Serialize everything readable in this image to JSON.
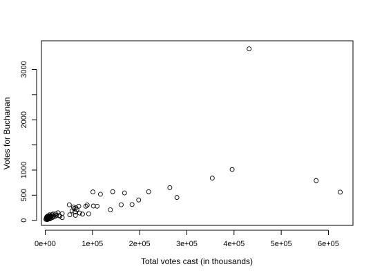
{
  "chart_data": {
    "type": "scatter",
    "title": "",
    "xlabel": "Total votes cast (in thousands)",
    "ylabel": "Votes for Buchanan",
    "xlim": [
      -8000,
      652000
    ],
    "ylim": [
      -100,
      3570
    ],
    "x_ticks": [
      0,
      100000,
      200000,
      300000,
      400000,
      500000,
      600000
    ],
    "x_tick_labels": [
      "0e+00",
      "1e+05",
      "2e+05",
      "3e+05",
      "4e+05",
      "5e+05",
      "6e+05"
    ],
    "y_ticks": [
      0,
      500,
      1000,
      1500,
      2000,
      2500,
      3000
    ],
    "y_tick_labels": [
      "0",
      "500",
      "1000",
      "",
      "2000",
      "",
      "3000"
    ],
    "grid": false,
    "legend": "none",
    "marker": "open-circle",
    "colors": {
      "points": "#000000",
      "axes": "#000000",
      "background": "#ffffff"
    },
    "series": [
      {
        "values": [
          {
            "x": 1500,
            "y": 20
          },
          {
            "x": 2200,
            "y": 45
          },
          {
            "x": 2800,
            "y": 30
          },
          {
            "x": 3300,
            "y": 70
          },
          {
            "x": 3800,
            "y": 55
          },
          {
            "x": 4300,
            "y": 15
          },
          {
            "x": 4900,
            "y": 85
          },
          {
            "x": 5300,
            "y": 40
          },
          {
            "x": 5900,
            "y": 25
          },
          {
            "x": 6400,
            "y": 60
          },
          {
            "x": 6900,
            "y": 90
          },
          {
            "x": 7400,
            "y": 35
          },
          {
            "x": 8000,
            "y": 50
          },
          {
            "x": 8600,
            "y": 75
          },
          {
            "x": 9200,
            "y": 110
          },
          {
            "x": 9800,
            "y": 30
          },
          {
            "x": 10500,
            "y": 65
          },
          {
            "x": 11200,
            "y": 95
          },
          {
            "x": 12000,
            "y": 45
          },
          {
            "x": 13000,
            "y": 80
          },
          {
            "x": 14000,
            "y": 110
          },
          {
            "x": 15000,
            "y": 55
          },
          {
            "x": 16500,
            "y": 125
          },
          {
            "x": 18000,
            "y": 90
          },
          {
            "x": 20000,
            "y": 75
          },
          {
            "x": 22000,
            "y": 130
          },
          {
            "x": 24000,
            "y": 100
          },
          {
            "x": 27000,
            "y": 150
          },
          {
            "x": 29000,
            "y": 95
          },
          {
            "x": 31000,
            "y": 85
          },
          {
            "x": 36000,
            "y": 135
          },
          {
            "x": 36000,
            "y": 55
          },
          {
            "x": 51000,
            "y": 310
          },
          {
            "x": 52000,
            "y": 110
          },
          {
            "x": 57000,
            "y": 190
          },
          {
            "x": 60000,
            "y": 265
          },
          {
            "x": 61000,
            "y": 235
          },
          {
            "x": 63000,
            "y": 165
          },
          {
            "x": 64000,
            "y": 100
          },
          {
            "x": 65000,
            "y": 250
          },
          {
            "x": 67000,
            "y": 215
          },
          {
            "x": 71000,
            "y": 280
          },
          {
            "x": 73000,
            "y": 145
          },
          {
            "x": 79000,
            "y": 125
          },
          {
            "x": 86000,
            "y": 280
          },
          {
            "x": 89000,
            "y": 305
          },
          {
            "x": 92000,
            "y": 130
          },
          {
            "x": 101000,
            "y": 565
          },
          {
            "x": 102000,
            "y": 285
          },
          {
            "x": 110000,
            "y": 280
          },
          {
            "x": 117000,
            "y": 520
          },
          {
            "x": 138000,
            "y": 210
          },
          {
            "x": 143000,
            "y": 570
          },
          {
            "x": 161000,
            "y": 310
          },
          {
            "x": 168000,
            "y": 545
          },
          {
            "x": 184000,
            "y": 315
          },
          {
            "x": 198000,
            "y": 405
          },
          {
            "x": 219000,
            "y": 570
          },
          {
            "x": 264000,
            "y": 650
          },
          {
            "x": 279000,
            "y": 455
          },
          {
            "x": 354000,
            "y": 840
          },
          {
            "x": 396000,
            "y": 1010
          },
          {
            "x": 432000,
            "y": 3410
          },
          {
            "x": 574000,
            "y": 790
          },
          {
            "x": 625000,
            "y": 560
          }
        ]
      }
    ]
  }
}
